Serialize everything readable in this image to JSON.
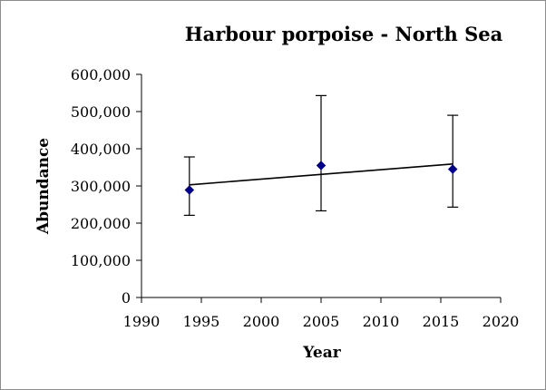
{
  "chart_data": {
    "type": "scatter",
    "title": "Harbour porpoise - North Sea",
    "xlabel": "Year",
    "ylabel": "Abundance",
    "xlim": [
      1990,
      2020
    ],
    "ylim": [
      0,
      600000
    ],
    "x_ticks": [
      "1990",
      "1995",
      "2000",
      "2005",
      "2010",
      "2015",
      "2020"
    ],
    "y_ticks": [
      "0",
      "100,000",
      "200,000",
      "300,000",
      "400,000",
      "500,000",
      "600,000"
    ],
    "grid": false,
    "legend": "none",
    "marker_color": "#00008B",
    "line_color": "#000000",
    "series": [
      {
        "x": [
          1994,
          2005,
          2016
        ],
        "y": [
          289000,
          355000,
          345000
        ],
        "error_low": [
          221000,
          233000,
          243000
        ],
        "error_high": [
          378000,
          543000,
          490000
        ]
      }
    ],
    "trendline": {
      "x": [
        1994,
        2016
      ],
      "y": [
        303000,
        359000
      ]
    }
  }
}
